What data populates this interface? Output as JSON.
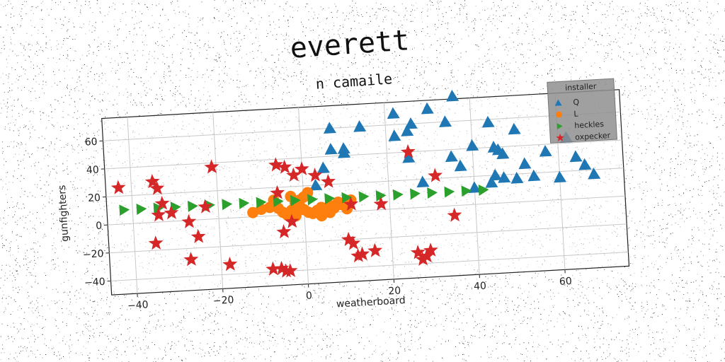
{
  "chart_data": {
    "type": "scatter",
    "title": "everett",
    "subtitle": "n camaile",
    "xlabel": "weatherboard",
    "ylabel": "gunfighters",
    "xlim": [
      -46,
      75
    ],
    "ylim": [
      -50,
      76
    ],
    "xticks": [
      -40,
      -20,
      0,
      20,
      40,
      60
    ],
    "yticks": [
      -40,
      -20,
      0,
      20,
      40,
      60
    ],
    "grid": true,
    "legend": {
      "title": "installer",
      "placement": "top-right"
    },
    "series": [
      {
        "name": "Q",
        "marker": "triangle",
        "color": "#1f77b4",
        "points": [
          [
            40,
            12
          ],
          [
            45,
            20
          ],
          [
            44,
            15
          ],
          [
            47,
            18
          ],
          [
            50,
            17
          ],
          [
            54,
            18
          ],
          [
            60,
            16
          ],
          [
            68,
            17
          ],
          [
            66,
            24
          ],
          [
            64,
            30
          ],
          [
            57,
            35
          ],
          [
            52,
            27
          ],
          [
            46,
            38
          ],
          [
            47,
            35
          ],
          [
            50,
            52
          ],
          [
            45,
            40
          ],
          [
            62,
            44
          ],
          [
            44,
            58
          ],
          [
            37,
            28
          ],
          [
            35,
            35
          ],
          [
            40,
            42
          ],
          [
            34,
            60
          ],
          [
            36,
            78
          ],
          [
            30,
            70
          ],
          [
            22,
            68
          ],
          [
            26,
            60
          ],
          [
            25,
            55
          ],
          [
            22,
            52
          ],
          [
            25,
            36
          ],
          [
            28,
            18
          ],
          [
            14,
            60
          ],
          [
            7,
            60
          ],
          [
            7,
            45
          ],
          [
            10,
            45
          ],
          [
            10,
            42
          ],
          [
            5,
            32
          ],
          [
            3,
            20
          ]
        ]
      },
      {
        "name": "L",
        "marker": "circle",
        "color": "#ff7f0e",
        "points": [
          [
            -12,
            3
          ],
          [
            -10,
            5
          ],
          [
            -8,
            6
          ],
          [
            -6,
            5
          ],
          [
            -5,
            2
          ],
          [
            -4,
            0
          ],
          [
            -3,
            3
          ],
          [
            -2,
            8
          ],
          [
            -1,
            10
          ],
          [
            0,
            12
          ],
          [
            1,
            15
          ],
          [
            -1,
            6
          ],
          [
            0,
            3
          ],
          [
            1,
            1
          ],
          [
            2,
            0
          ],
          [
            3,
            2
          ],
          [
            4,
            4
          ],
          [
            5,
            1
          ],
          [
            6,
            0
          ],
          [
            7,
            3
          ],
          [
            8,
            7
          ],
          [
            9,
            5
          ],
          [
            10,
            2
          ],
          [
            -7,
            11
          ],
          [
            -3,
            13
          ],
          [
            -2,
            -1
          ],
          [
            4,
            -2
          ],
          [
            6,
            5
          ],
          [
            11,
            8
          ]
        ]
      },
      {
        "name": "heckles",
        "marker": "triangle-right",
        "color": "#2ca02c",
        "points": [
          [
            -42,
            10
          ],
          [
            -38,
            10
          ],
          [
            -34,
            10
          ],
          [
            -30,
            10
          ],
          [
            -26,
            10
          ],
          [
            -22,
            10
          ],
          [
            -18,
            10
          ],
          [
            -14,
            10
          ],
          [
            -10,
            10
          ],
          [
            -6,
            10
          ],
          [
            -2,
            10
          ],
          [
            2,
            10
          ],
          [
            6,
            10
          ],
          [
            10,
            10
          ],
          [
            14,
            10
          ],
          [
            18,
            10
          ],
          [
            22,
            10
          ],
          [
            26,
            10
          ],
          [
            30,
            10
          ],
          [
            34,
            10
          ],
          [
            38,
            10
          ],
          [
            42,
            10
          ]
        ]
      },
      {
        "name": "oxpecker",
        "marker": "star",
        "color": "#d62728",
        "points": [
          [
            -43,
            26
          ],
          [
            -35,
            29
          ],
          [
            -34,
            24
          ],
          [
            -33,
            13
          ],
          [
            -34,
            5
          ],
          [
            -31,
            6
          ],
          [
            -27,
            -1
          ],
          [
            -25,
            -12
          ],
          [
            -27,
            -28
          ],
          [
            -35,
            -15
          ],
          [
            -23,
            9
          ],
          [
            -21,
            37
          ],
          [
            -18,
            -33
          ],
          [
            -8,
            -38
          ],
          [
            -6,
            -38
          ],
          [
            -5,
            -40
          ],
          [
            -4,
            -40
          ],
          [
            -5,
            -12
          ],
          [
            -3,
            -5
          ],
          [
            -6,
            36
          ],
          [
            -4,
            34
          ],
          [
            -6,
            16
          ],
          [
            -2,
            28
          ],
          [
            0,
            32
          ],
          [
            3,
            27
          ],
          [
            6,
            22
          ],
          [
            10,
            -20
          ],
          [
            11,
            -23
          ],
          [
            12,
            -32
          ],
          [
            13,
            -31
          ],
          [
            16,
            -29
          ],
          [
            18,
            4
          ],
          [
            26,
            -32
          ],
          [
            27,
            -37
          ],
          [
            28,
            -35
          ],
          [
            29,
            -31
          ],
          [
            25,
            40
          ],
          [
            31,
            22
          ],
          [
            35,
            -7
          ],
          [
            11,
            5
          ]
        ]
      }
    ]
  }
}
